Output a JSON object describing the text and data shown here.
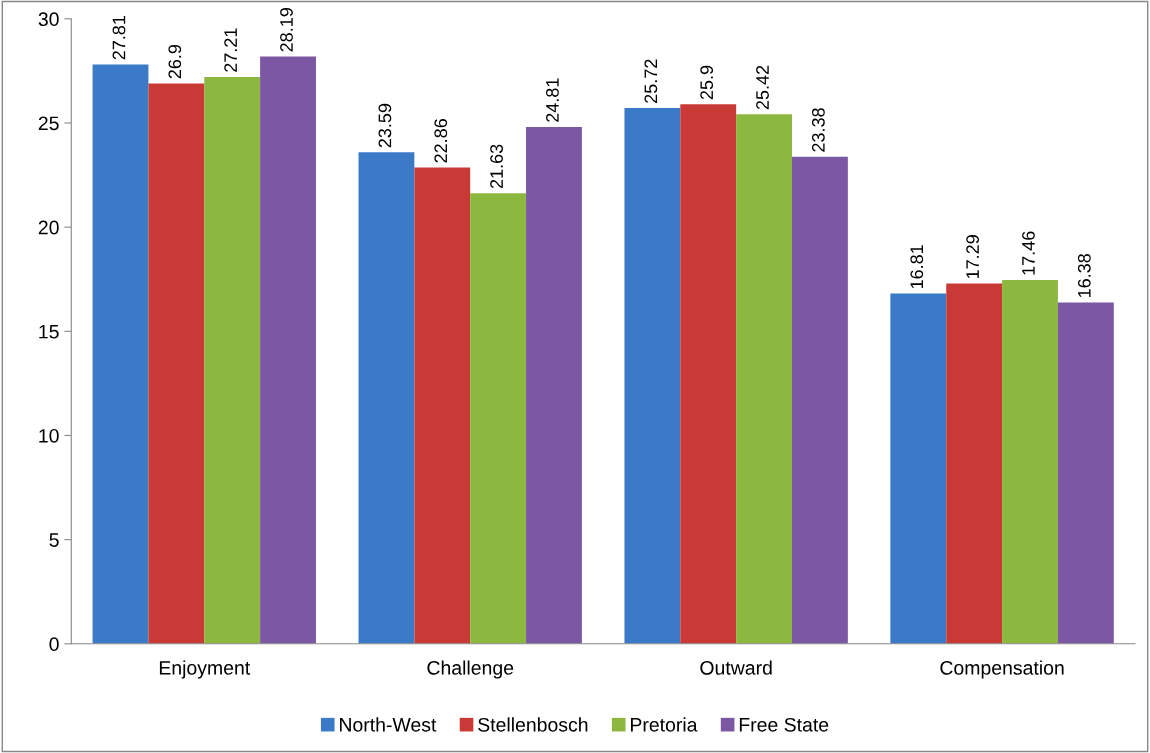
{
  "chart_data": {
    "type": "bar",
    "categories": [
      "Enjoyment",
      "Challenge",
      "Outward",
      "Compensation"
    ],
    "series": [
      {
        "name": "North-West",
        "color": "#3b7ac6",
        "values": [
          27.81,
          23.59,
          25.72,
          16.81
        ]
      },
      {
        "name": "Stellenbosch",
        "color": "#c93a36",
        "values": [
          26.9,
          22.86,
          25.9,
          17.29
        ]
      },
      {
        "name": "Pretoria",
        "color": "#8db83f",
        "values": [
          27.21,
          21.63,
          25.42,
          17.46
        ]
      },
      {
        "name": "Free State",
        "color": "#7b57a4",
        "values": [
          28.19,
          24.81,
          23.38,
          16.38
        ]
      }
    ],
    "ylim": [
      0,
      30
    ],
    "yticks": [
      0,
      5,
      10,
      15,
      20,
      25,
      30
    ],
    "grid": false,
    "legend": "bottom",
    "data_labels": true
  }
}
